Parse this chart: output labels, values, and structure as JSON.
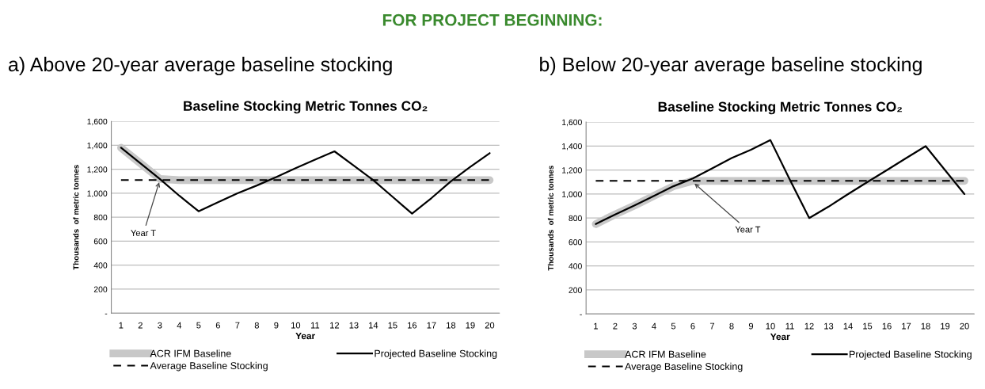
{
  "chart_data": [
    {
      "type": "line",
      "title": "a) Above 20-year average baseline stocking",
      "subtitle": "Baseline Stocking Metric Tonnes CO₂",
      "xlabel": "Year",
      "ylabel": "Thousands  of metric tonnes",
      "categories": [
        "1",
        "2",
        "3",
        "4",
        "5",
        "6",
        "7",
        "8",
        "9",
        "10",
        "11",
        "12",
        "13",
        "14",
        "15",
        "16",
        "17",
        "18",
        "19",
        "20"
      ],
      "series": [
        {
          "name": "ACR IFM Baseline",
          "color": "#c8c8c8",
          "line_style": "solid",
          "values": [
            1380,
            1250,
            1120,
            1110,
            1110,
            1110,
            1110,
            1110,
            1110,
            1110,
            1110,
            1110,
            1110,
            1110,
            1110,
            1110,
            1110,
            1110,
            1110,
            1110
          ]
        },
        {
          "name": "Average Baseline Stocking",
          "color": "#000000",
          "line_style": "dashed",
          "values": [
            1110,
            1110,
            1110,
            1110,
            1110,
            1110,
            1110,
            1110,
            1110,
            1110,
            1110,
            1110,
            1110,
            1110,
            1110,
            1110,
            1110,
            1110,
            1110,
            1110
          ]
        },
        {
          "name": "Projected Baseline Stocking",
          "color": "#000000",
          "line_style": "solid",
          "values": [
            1380,
            1250,
            1120,
            980,
            850,
            925,
            1000,
            1065,
            1135,
            1210,
            1280,
            1350,
            1230,
            1110,
            970,
            830,
            960,
            1100,
            1220,
            1335
          ]
        }
      ],
      "ylim": [
        0,
        1600
      ],
      "yticks": [
        {
          "value": 0,
          "label": "-"
        },
        {
          "value": 200,
          "label": "200"
        },
        {
          "value": 400,
          "label": "400"
        },
        {
          "value": 600,
          "label": "600"
        },
        {
          "value": 800,
          "label": "800"
        },
        {
          "value": 1000,
          "label": "1,000"
        },
        {
          "value": 1200,
          "label": "1,200"
        },
        {
          "value": 1400,
          "label": "1,400"
        },
        {
          "value": 1600,
          "label": "1,600"
        }
      ],
      "grid": "y",
      "legend": "bottom",
      "marker": "none",
      "annotations": [
        "FOR PROJECT BEGINNING:",
        {
          "text": "Year T",
          "x": "3",
          "y": 1110
        }
      ]
    },
    {
      "type": "line",
      "title": "b) Below 20-year average baseline stocking",
      "subtitle": "Baseline Stocking Metric Tonnes CO₂",
      "xlabel": "Year",
      "ylabel": "Thousands  of metric tonnes",
      "categories": [
        "1",
        "2",
        "3",
        "4",
        "5",
        "6",
        "7",
        "8",
        "9",
        "10",
        "11",
        "12",
        "13",
        "14",
        "15",
        "16",
        "17",
        "18",
        "19",
        "20"
      ],
      "series": [
        {
          "name": "ACR IFM Baseline",
          "color": "#c8c8c8",
          "line_style": "solid",
          "values": [
            750,
            830,
            905,
            985,
            1065,
            1110,
            1110,
            1110,
            1110,
            1110,
            1110,
            1110,
            1110,
            1110,
            1110,
            1110,
            1110,
            1110,
            1110,
            1110
          ]
        },
        {
          "name": "Average Baseline Stocking",
          "color": "#000000",
          "line_style": "dashed",
          "values": [
            1110,
            1110,
            1110,
            1110,
            1110,
            1110,
            1110,
            1110,
            1110,
            1110,
            1110,
            1110,
            1110,
            1110,
            1110,
            1110,
            1110,
            1110,
            1110,
            1110
          ]
        },
        {
          "name": "Projected Baseline Stocking",
          "color": "#000000",
          "line_style": "solid",
          "values": [
            750,
            830,
            905,
            985,
            1065,
            1130,
            1215,
            1300,
            1370,
            1450,
            1120,
            800,
            895,
            1000,
            1100,
            1200,
            1300,
            1400,
            1200,
            1000
          ]
        }
      ],
      "ylim": [
        0,
        1600
      ],
      "yticks": [
        {
          "value": 0,
          "label": "-"
        },
        {
          "value": 200,
          "label": "200"
        },
        {
          "value": 400,
          "label": "400"
        },
        {
          "value": 600,
          "label": "600"
        },
        {
          "value": 800,
          "label": "800"
        },
        {
          "value": 1000,
          "label": "1,000"
        },
        {
          "value": 1200,
          "label": "1,200"
        },
        {
          "value": 1400,
          "label": "1,400"
        },
        {
          "value": 1600,
          "label": "1,600"
        }
      ],
      "grid": "y",
      "legend": "bottom",
      "marker": "none",
      "annotations": [
        {
          "text": "Year T",
          "x": "6",
          "y": 1100
        }
      ]
    }
  ]
}
